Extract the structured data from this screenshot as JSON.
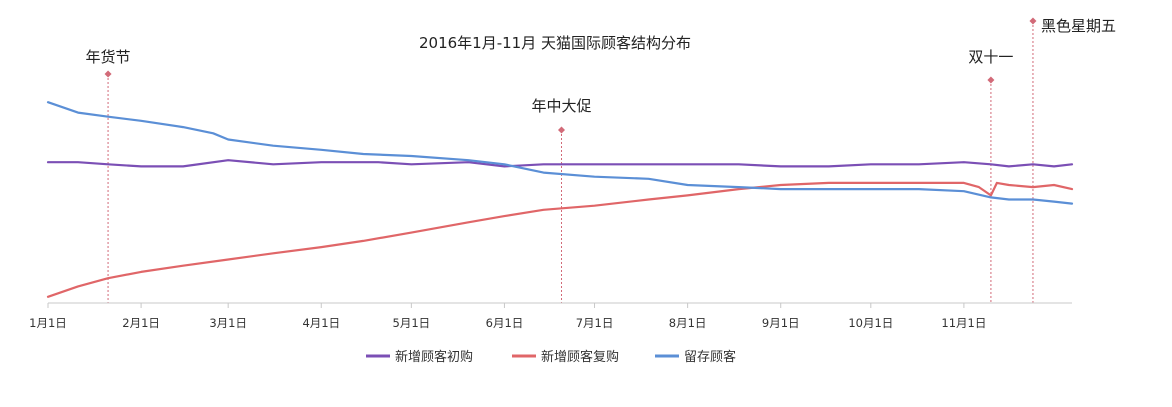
{
  "chart_data": {
    "type": "line",
    "title": "2016年1月-11月 天猫国际顾客结构分布",
    "xlabel": "",
    "ylabel": "",
    "x_axis": {
      "labels": [
        "1月1日",
        "2月1日",
        "3月1日",
        "4月1日",
        "5月1日",
        "6月1日",
        "7月1日",
        "8月1日",
        "9月1日",
        "10月1日",
        "11月1日"
      ],
      "start_day": 0,
      "end_day": 341,
      "tick_days": [
        0,
        31,
        60,
        91,
        121,
        152,
        182,
        213,
        244,
        274,
        305
      ]
    },
    "y_axis": {
      "visible": false,
      "ylim": [
        0,
        100
      ]
    },
    "grid": false,
    "legend_position": "bottom",
    "events": [
      {
        "label": "年货节",
        "day": 20
      },
      {
        "label": "年中大促",
        "day": 171
      },
      {
        "label": "双十一",
        "day": 314
      },
      {
        "label": "黑色星期五",
        "day": 328
      }
    ],
    "series": [
      {
        "name": "新增顾客初购",
        "color": "#7b4fb5",
        "x": [
          0,
          10,
          20,
          31,
          45,
          60,
          75,
          91,
          110,
          121,
          140,
          152,
          165,
          182,
          200,
          213,
          230,
          244,
          260,
          274,
          290,
          305,
          314,
          320,
          328,
          335,
          341
        ],
        "values": [
          68,
          68,
          67,
          66,
          66,
          69,
          67,
          68,
          68,
          67,
          68,
          66,
          67,
          67,
          67,
          67,
          67,
          66,
          66,
          67,
          67,
          68,
          67,
          66,
          67,
          66,
          67
        ]
      },
      {
        "name": "新增顾客复购",
        "color": "#e06668",
        "x": [
          0,
          10,
          20,
          31,
          45,
          60,
          75,
          91,
          105,
          121,
          140,
          152,
          165,
          182,
          200,
          213,
          230,
          244,
          260,
          274,
          290,
          305,
          310,
          314,
          316,
          320,
          328,
          335,
          341
        ],
        "values": [
          3,
          8,
          12,
          15,
          18,
          21,
          24,
          27,
          30,
          34,
          39,
          42,
          45,
          47,
          50,
          52,
          55,
          57,
          58,
          58,
          58,
          58,
          56,
          52,
          58,
          57,
          56,
          57,
          55
        ]
      },
      {
        "name": "留存顾客",
        "color": "#5b8fd6",
        "x": [
          0,
          10,
          20,
          31,
          45,
          55,
          60,
          75,
          91,
          105,
          121,
          140,
          152,
          165,
          182,
          200,
          213,
          230,
          244,
          260,
          274,
          290,
          305,
          314,
          320,
          328,
          335,
          341
        ],
        "values": [
          97,
          92,
          90,
          88,
          85,
          82,
          79,
          76,
          74,
          72,
          71,
          69,
          67,
          63,
          61,
          60,
          57,
          56,
          55,
          55,
          55,
          55,
          54,
          51,
          50,
          50,
          49,
          48
        ]
      }
    ]
  }
}
